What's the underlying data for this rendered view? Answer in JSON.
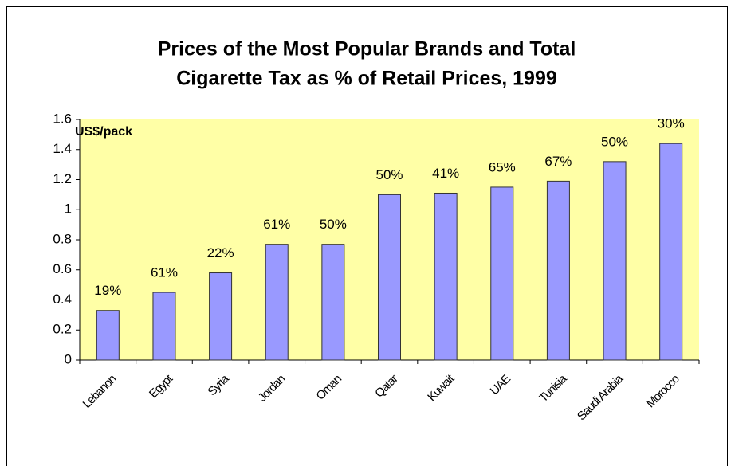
{
  "chart_data": {
    "type": "bar",
    "title": [
      "Prices of the Most Popular Brands and Total",
      "Cigarette Tax as % of Retail Prices, 1999"
    ],
    "y_label": "US$/pack",
    "categories": [
      "Lebanon",
      "Egypt",
      "Syria",
      "Jordan",
      "Oman",
      "Qatar",
      "Kuwait",
      "UAE",
      "Tunisia",
      "Saudi Arabia",
      "Morocco"
    ],
    "values": [
      0.33,
      0.45,
      0.58,
      0.77,
      0.77,
      1.1,
      1.11,
      1.15,
      1.19,
      1.32,
      1.44
    ],
    "data_labels": [
      "19%",
      "61%",
      "22%",
      "61%",
      "50%",
      "50%",
      "41%",
      "65%",
      "67%",
      "50%",
      "30%"
    ],
    "color": "#9999ff",
    "ylim": [
      0,
      1.6
    ],
    "yticks": [
      0,
      0.2,
      0.4,
      0.6,
      0.8,
      1,
      1.2,
      1.4,
      1.6
    ]
  }
}
